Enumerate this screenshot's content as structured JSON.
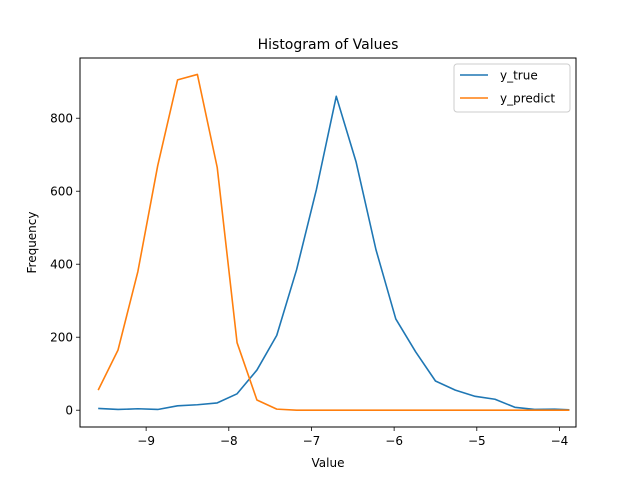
{
  "chart_data": {
    "type": "line",
    "title": "Histogram of Values",
    "xlabel": "Value",
    "ylabel": "Frequency",
    "xlim": [
      -9.8,
      -3.8
    ],
    "ylim": [
      -46,
      965
    ],
    "xticks": [
      -9,
      -8,
      -7,
      -6,
      -5,
      -4
    ],
    "yticks": [
      0,
      200,
      400,
      600,
      800
    ],
    "xtick_labels": [
      "−9",
      "−8",
      "−7",
      "−6",
      "−5",
      "−4"
    ],
    "ytick_labels": [
      "0",
      "200",
      "400",
      "600",
      "800"
    ],
    "legend_position": "top-right",
    "series": [
      {
        "name": "y_true",
        "color": "#1f77b4",
        "x": [
          -9.58,
          -9.34,
          -9.1,
          -8.86,
          -8.62,
          -8.38,
          -8.14,
          -7.9,
          -7.66,
          -7.42,
          -7.18,
          -6.94,
          -6.7,
          -6.46,
          -6.22,
          -5.98,
          -5.74,
          -5.5,
          -5.26,
          -5.02,
          -4.78,
          -4.54,
          -4.3,
          -4.06,
          -3.88
        ],
        "y": [
          5,
          2,
          4,
          2,
          12,
          15,
          20,
          45,
          110,
          205,
          385,
          605,
          860,
          680,
          440,
          250,
          160,
          80,
          55,
          38,
          30,
          8,
          2,
          3,
          1
        ]
      },
      {
        "name": "y_predict",
        "color": "#ff7f0e",
        "x": [
          -9.58,
          -9.34,
          -9.1,
          -8.86,
          -8.62,
          -8.38,
          -8.14,
          -7.9,
          -7.66,
          -7.42,
          -7.18,
          -6.94,
          -6.7,
          -6.46,
          -6.22,
          -5.98,
          -5.74,
          -5.5,
          -5.26,
          -5.02,
          -4.78,
          -4.54,
          -4.3,
          -4.06,
          -3.88
        ],
        "y": [
          55,
          165,
          380,
          670,
          905,
          920,
          665,
          185,
          28,
          3,
          0,
          0,
          0,
          0,
          0,
          0,
          0,
          0,
          0,
          0,
          0,
          0,
          0,
          0,
          0
        ]
      }
    ]
  }
}
